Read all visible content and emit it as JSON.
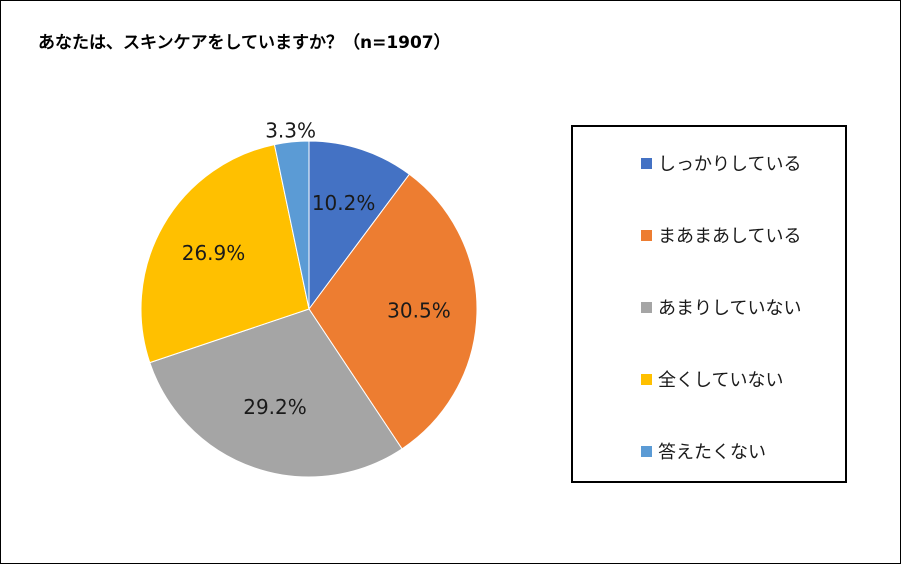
{
  "title": "あなたは、スキンケアをしていますか？（n=1907）",
  "chart_data": {
    "type": "pie",
    "title": "あなたは、スキンケアをしていますか？（n=1907）",
    "slices": [
      {
        "label": "しっかりしている",
        "value": 10.2,
        "display": "10.2%",
        "color": "#4472C4"
      },
      {
        "label": "まあまあしている",
        "value": 30.5,
        "display": "30.5%",
        "color": "#ED7D31"
      },
      {
        "label": "あまりしていない",
        "value": 29.2,
        "display": "29.2%",
        "color": "#A5A5A5"
      },
      {
        "label": "全くしていない",
        "value": 26.9,
        "display": "26.9%",
        "color": "#FFC000"
      },
      {
        "label": "答えたくない",
        "value": 3.3,
        "display": "3.3%",
        "color": "#5B9BD5"
      }
    ],
    "legend_position": "right"
  }
}
